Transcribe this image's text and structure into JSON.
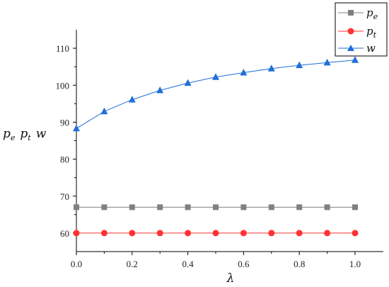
{
  "chart_data": {
    "type": "line",
    "title": "",
    "xlabel": "λ",
    "ylabel": {
      "parts": [
        "p",
        "e",
        "p",
        "t",
        "w"
      ]
    },
    "xlim": [
      0,
      1.0
    ],
    "ylim": [
      55,
      115
    ],
    "xticks": [
      0.0,
      0.2,
      0.4,
      0.6,
      0.8,
      1.0
    ],
    "xtick_labels": [
      "0.0",
      "0.2",
      "0.4",
      "0.6",
      "0.8",
      "1.0"
    ],
    "yticks": [
      60,
      70,
      80,
      90,
      100,
      110
    ],
    "ytick_labels": [
      "60",
      "70",
      "80",
      "90",
      "100",
      "110"
    ],
    "grid": false,
    "legend_position": "top-right",
    "x": [
      0.0,
      0.1,
      0.2,
      0.3,
      0.4,
      0.5,
      0.6,
      0.7,
      0.8,
      0.9,
      1.0
    ],
    "series": [
      {
        "key": "pe",
        "name": {
          "base": "p",
          "sub": "e"
        },
        "color": "#808080",
        "marker": "square",
        "values": [
          67,
          67,
          67,
          67,
          67,
          67,
          67,
          67,
          67,
          67,
          67
        ]
      },
      {
        "key": "pt",
        "name": {
          "base": "p",
          "sub": "t"
        },
        "color": "#ff3333",
        "marker": "circle",
        "values": [
          60,
          60,
          60,
          60,
          60,
          60,
          60,
          60,
          60,
          60,
          60
        ]
      },
      {
        "key": "w",
        "name": {
          "base": "w",
          "sub": ""
        },
        "color": "#1f6fd6",
        "marker": "triangle",
        "values": [
          88.3,
          92.9,
          96.1,
          98.6,
          100.6,
          102.2,
          103.4,
          104.5,
          105.4,
          106.1,
          106.8
        ]
      }
    ]
  }
}
